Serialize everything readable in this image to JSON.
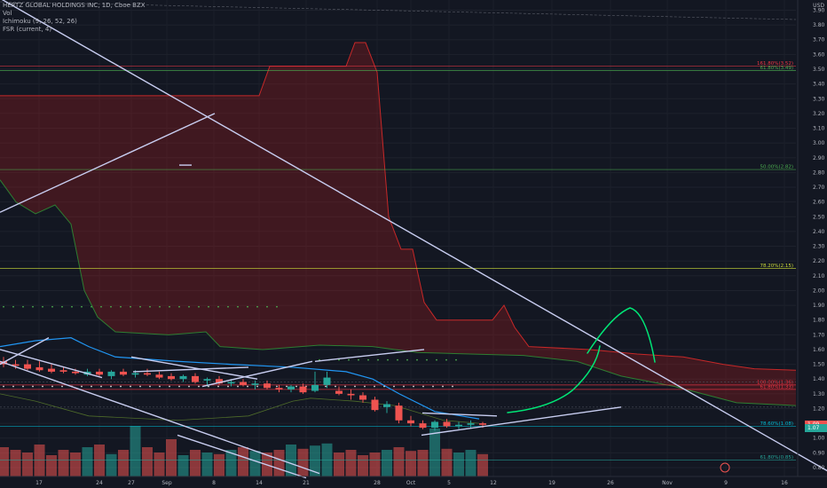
{
  "legend": {
    "symbol": "HERTZ GLOBAL HOLDINGS INC, 1D, Cboe BZX",
    "vol": "Vol",
    "ichimoku": "Ichimoku (9, 26, 52, 26)",
    "fsr": "FSR (current, 4)"
  },
  "currency": "USD",
  "price_axis_labels": [
    "3.90",
    "3.80",
    "3.70",
    "3.60",
    "3.50",
    "3.40",
    "3.30",
    "3.20",
    "3.10",
    "3.00",
    "2.90",
    "2.80",
    "2.70",
    "2.60",
    "2.50",
    "2.40",
    "2.30",
    "2.20",
    "2.10",
    "2.00",
    "1.90",
    "1.80",
    "1.70",
    "1.60",
    "1.50",
    "1.40",
    "1.30",
    "1.20",
    "1.10",
    "1.00",
    "0.90",
    "0.80"
  ],
  "last_price_tags": [
    {
      "value": "1.09",
      "color": "#ef5350"
    },
    {
      "value": "1.07",
      "color": "#26a69a"
    }
  ],
  "date_axis_labels": [
    "17",
    "24",
    "27",
    "Sep",
    "8",
    "14",
    "21",
    "28",
    "Oct",
    "5",
    "12",
    "19",
    "26",
    "Nov",
    "9",
    "16"
  ],
  "colors": {
    "background": "#131722",
    "up": "#26a69a",
    "down": "#ef5350",
    "cloud_red": "#b71c1c",
    "cloud_green": "#1b5e20",
    "fib_red": "#f23645",
    "fib_green": "#4caf50",
    "fib_yellow": "#cddc39",
    "fib_purple": "#7e57c2",
    "fib_teal": "#00bcd4",
    "drawing": "#c8cdf0",
    "sketch": "#00e676",
    "kijun": "#2196f3"
  },
  "chart_data": {
    "type": "candlestick",
    "ylim": [
      0.75,
      3.95
    ],
    "x_dates": [
      "Aug 13",
      "Aug 14",
      "Aug 17",
      "Aug 18",
      "Aug 19",
      "Aug 20",
      "Aug 21",
      "Aug 24",
      "Aug 25",
      "Aug 26",
      "Aug 27",
      "Aug 28",
      "Aug 31",
      "Sep 1",
      "Sep 2",
      "Sep 3",
      "Sep 4",
      "Sep 8",
      "Sep 9",
      "Sep 10",
      "Sep 11",
      "Sep 14",
      "Sep 15",
      "Sep 16",
      "Sep 17",
      "Sep 18",
      "Sep 21",
      "Sep 22",
      "Sep 23",
      "Sep 24",
      "Sep 25",
      "Sep 28",
      "Sep 29",
      "Sep 30",
      "Oct 1",
      "Oct 2",
      "Oct 5",
      "Oct 6",
      "Oct 7",
      "Oct 8",
      "Oct 9"
    ],
    "candles": [
      {
        "o": 1.52,
        "h": 1.55,
        "l": 1.48,
        "c": 1.5
      },
      {
        "o": 1.5,
        "h": 1.53,
        "l": 1.47,
        "c": 1.49
      },
      {
        "o": 1.5,
        "h": 1.53,
        "l": 1.46,
        "c": 1.47
      },
      {
        "o": 1.48,
        "h": 1.52,
        "l": 1.45,
        "c": 1.46
      },
      {
        "o": 1.47,
        "h": 1.5,
        "l": 1.44,
        "c": 1.45
      },
      {
        "o": 1.46,
        "h": 1.48,
        "l": 1.44,
        "c": 1.45
      },
      {
        "o": 1.45,
        "h": 1.47,
        "l": 1.43,
        "c": 1.44
      },
      {
        "o": 1.43,
        "h": 1.47,
        "l": 1.42,
        "c": 1.45
      },
      {
        "o": 1.45,
        "h": 1.47,
        "l": 1.42,
        "c": 1.43
      },
      {
        "o": 1.42,
        "h": 1.46,
        "l": 1.4,
        "c": 1.45
      },
      {
        "o": 1.45,
        "h": 1.47,
        "l": 1.42,
        "c": 1.43
      },
      {
        "o": 1.43,
        "h": 1.46,
        "l": 1.41,
        "c": 1.44
      },
      {
        "o": 1.44,
        "h": 1.47,
        "l": 1.42,
        "c": 1.43
      },
      {
        "o": 1.43,
        "h": 1.45,
        "l": 1.4,
        "c": 1.41
      },
      {
        "o": 1.42,
        "h": 1.44,
        "l": 1.39,
        "c": 1.4
      },
      {
        "o": 1.4,
        "h": 1.43,
        "l": 1.38,
        "c": 1.42
      },
      {
        "o": 1.42,
        "h": 1.44,
        "l": 1.37,
        "c": 1.38
      },
      {
        "o": 1.39,
        "h": 1.41,
        "l": 1.35,
        "c": 1.4
      },
      {
        "o": 1.4,
        "h": 1.42,
        "l": 1.36,
        "c": 1.37
      },
      {
        "o": 1.37,
        "h": 1.4,
        "l": 1.35,
        "c": 1.38
      },
      {
        "o": 1.38,
        "h": 1.4,
        "l": 1.35,
        "c": 1.36
      },
      {
        "o": 1.36,
        "h": 1.39,
        "l": 1.33,
        "c": 1.37
      },
      {
        "o": 1.37,
        "h": 1.39,
        "l": 1.33,
        "c": 1.34
      },
      {
        "o": 1.34,
        "h": 1.36,
        "l": 1.31,
        "c": 1.33
      },
      {
        "o": 1.33,
        "h": 1.36,
        "l": 1.31,
        "c": 1.35
      },
      {
        "o": 1.35,
        "h": 1.37,
        "l": 1.3,
        "c": 1.31
      },
      {
        "o": 1.32,
        "h": 1.45,
        "l": 1.31,
        "c": 1.36
      },
      {
        "o": 1.36,
        "h": 1.45,
        "l": 1.34,
        "c": 1.41
      },
      {
        "o": 1.32,
        "h": 1.35,
        "l": 1.29,
        "c": 1.3
      },
      {
        "o": 1.3,
        "h": 1.33,
        "l": 1.26,
        "c": 1.29
      },
      {
        "o": 1.29,
        "h": 1.31,
        "l": 1.24,
        "c": 1.26
      },
      {
        "o": 1.26,
        "h": 1.28,
        "l": 1.18,
        "c": 1.19
      },
      {
        "o": 1.21,
        "h": 1.25,
        "l": 1.17,
        "c": 1.23
      },
      {
        "o": 1.22,
        "h": 1.24,
        "l": 1.1,
        "c": 1.12
      },
      {
        "o": 1.12,
        "h": 1.15,
        "l": 1.08,
        "c": 1.1
      },
      {
        "o": 1.1,
        "h": 1.12,
        "l": 1.06,
        "c": 1.07
      },
      {
        "o": 1.07,
        "h": 1.12,
        "l": 1.05,
        "c": 1.11
      },
      {
        "o": 1.11,
        "h": 1.13,
        "l": 1.07,
        "c": 1.08
      },
      {
        "o": 1.08,
        "h": 1.11,
        "l": 1.06,
        "c": 1.09
      },
      {
        "o": 1.09,
        "h": 1.12,
        "l": 1.07,
        "c": 1.1
      },
      {
        "o": 1.1,
        "h": 1.11,
        "l": 1.07,
        "c": 1.09
      }
    ],
    "volume_relative": [
      0.55,
      0.5,
      0.45,
      0.6,
      0.4,
      0.5,
      0.45,
      0.55,
      0.6,
      0.42,
      0.5,
      0.95,
      0.55,
      0.45,
      0.7,
      0.4,
      0.5,
      0.45,
      0.42,
      0.5,
      0.55,
      0.48,
      0.45,
      0.5,
      0.6,
      0.52,
      0.58,
      0.62,
      0.45,
      0.5,
      0.4,
      0.45,
      0.5,
      0.55,
      0.48,
      0.5,
      0.9,
      0.52,
      0.45,
      0.5,
      0.42
    ],
    "fib_levels": [
      {
        "label": "161.80%(3.52)",
        "value": 3.52,
        "color": "#f23645"
      },
      {
        "label": "61.80%(3.49)",
        "value": 3.49,
        "color": "#4caf50"
      },
      {
        "label": "50.00%(2.82)",
        "value": 2.82,
        "color": "#4caf50"
      },
      {
        "label": "78.20%(2.15)",
        "value": 2.15,
        "color": "#cddc39"
      },
      {
        "label": "100.00%(1.36)",
        "value": 1.36,
        "color": "#f23645"
      },
      {
        "label": "61.80%(1.33)",
        "value": 1.33,
        "color": "#f23645"
      },
      {
        "label": "78.60%(1.08)",
        "value": 1.08,
        "color": "#00bcd4"
      },
      {
        "label": "61.80%(0.85)",
        "value": 0.85,
        "color": "#26a69a"
      }
    ],
    "cloud_span_b": [
      [
        0,
        3.32
      ],
      [
        292,
        3.32
      ],
      [
        304,
        3.52
      ],
      [
        390,
        3.52
      ],
      [
        400,
        3.68
      ],
      [
        412,
        3.68
      ],
      [
        425,
        3.48
      ],
      [
        438,
        2.5
      ],
      [
        452,
        2.28
      ],
      [
        465,
        2.28
      ],
      [
        478,
        1.92
      ],
      [
        492,
        1.8
      ],
      [
        555,
        1.8
      ],
      [
        568,
        1.9
      ],
      [
        580,
        1.75
      ],
      [
        596,
        1.62
      ],
      [
        665,
        1.6
      ],
      [
        718,
        1.57
      ],
      [
        770,
        1.55
      ],
      [
        815,
        1.5
      ],
      [
        850,
        1.47
      ],
      [
        897,
        1.46
      ]
    ],
    "cloud_span_a": [
      [
        0,
        2.75
      ],
      [
        18,
        2.6
      ],
      [
        40,
        2.52
      ],
      [
        62,
        2.58
      ],
      [
        80,
        2.45
      ],
      [
        95,
        2.0
      ],
      [
        110,
        1.82
      ],
      [
        130,
        1.72
      ],
      [
        190,
        1.7
      ],
      [
        232,
        1.72
      ],
      [
        248,
        1.62
      ],
      [
        296,
        1.6
      ],
      [
        360,
        1.63
      ],
      [
        420,
        1.62
      ],
      [
        470,
        1.58
      ],
      [
        530,
        1.57
      ],
      [
        590,
        1.56
      ],
      [
        650,
        1.52
      ],
      [
        700,
        1.42
      ],
      [
        760,
        1.35
      ],
      [
        830,
        1.24
      ],
      [
        897,
        1.22
      ]
    ],
    "trendlines": [
      [
        [
          0,
          3.98
        ],
        [
          955,
          0.7
        ]
      ],
      [
        [
          0,
          2.53
        ],
        [
          242,
          3.2
        ]
      ],
      [
        [
          202,
          2.85
        ],
        [
          216,
          2.85
        ]
      ],
      [
        [
          0,
          1.52
        ],
        [
          360,
          0.76
        ]
      ],
      [
        [
          0,
          1.6
        ],
        [
          115,
          1.41
        ]
      ],
      [
        [
          0,
          1.5
        ],
        [
          55,
          1.68
        ]
      ],
      [
        [
          148,
          1.55
        ],
        [
          290,
          1.4
        ]
      ],
      [
        [
          150,
          1.45
        ],
        [
          280,
          1.48
        ]
      ],
      [
        [
          228,
          1.35
        ],
        [
          352,
          1.52
        ]
      ],
      [
        [
          355,
          1.52
        ],
        [
          478,
          1.6
        ]
      ],
      [
        [
          475,
          1.02
        ],
        [
          700,
          1.21
        ]
      ],
      [
        [
          476,
          1.17
        ],
        [
          560,
          1.15
        ]
      ],
      [
        [
          200,
          1.02
        ],
        [
          345,
          0.73
        ]
      ]
    ],
    "chikou_dots": [
      1.89,
      1.53,
      1.35
    ],
    "legend_items": [
      "Vol",
      "Ichimoku (9, 26, 52, 26)",
      "FSR (current, 4)"
    ]
  }
}
